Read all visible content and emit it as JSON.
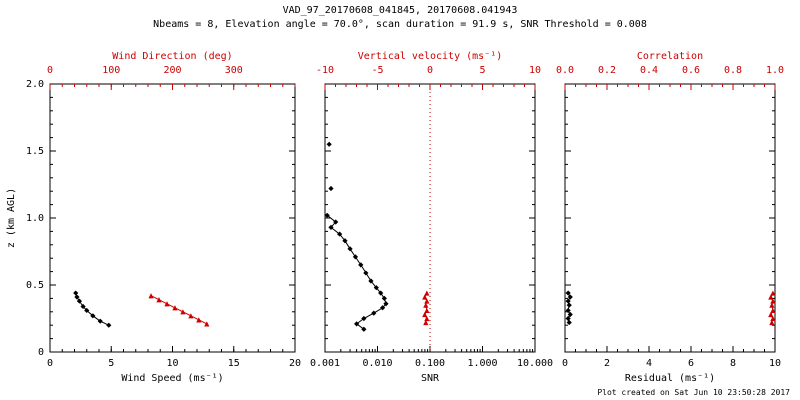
{
  "header": {
    "title": "VAD_97_20170608_041845, 20170608.041943",
    "subtitle": "Nbeams = 8, Elevation angle = 70.0°, scan duration = 91.9 s, SNR Threshold = 0.008"
  },
  "footer": {
    "created": "Plot created on Sat Jun 10 23:50:28 2017"
  },
  "colors": {
    "black": "#000000",
    "red": "#cc0000"
  },
  "chart_data": [
    {
      "name": "wind",
      "type": "line",
      "y": {
        "label": "z (km AGL)",
        "min": 0,
        "max": 2,
        "ticks": [
          0,
          0.5,
          1,
          1.5,
          2
        ],
        "tick_labels": [
          "0",
          "0.5",
          "1.0",
          "1.5",
          "2.0"
        ],
        "minor": 0.1,
        "show_labels": true
      },
      "x_bottom": {
        "label": "Wind Speed (ms⁻¹)",
        "min": 0,
        "max": 20,
        "scale": "linear",
        "ticks": [
          0,
          5,
          10,
          15,
          20
        ],
        "tick_labels": [
          "0",
          "5",
          "10",
          "15",
          "20"
        ],
        "minor": 1
      },
      "x_top": {
        "label": "Wind Direction (deg)",
        "min": 0,
        "max": 400,
        "scale": "linear",
        "ticks": [
          0,
          100,
          200,
          300
        ],
        "tick_labels": [
          "0",
          "100",
          "200",
          "300"
        ],
        "minor": 20
      },
      "series": [
        {
          "name": "wind-speed",
          "axis": "bottom",
          "color": "black",
          "line": true,
          "marker": "diamond",
          "points": [
            [
              2.1,
              0.44
            ],
            [
              2.2,
              0.41
            ],
            [
              2.4,
              0.38
            ],
            [
              2.7,
              0.34
            ],
            [
              3.0,
              0.31
            ],
            [
              3.5,
              0.27
            ],
            [
              4.1,
              0.23
            ],
            [
              4.8,
              0.2
            ]
          ]
        },
        {
          "name": "wind-direction",
          "axis": "top",
          "color": "red",
          "line": true,
          "marker": "triangle",
          "points": [
            [
              165,
              0.42
            ],
            [
              178,
              0.39
            ],
            [
              191,
              0.36
            ],
            [
              204,
              0.33
            ],
            [
              217,
              0.3
            ],
            [
              230,
              0.27
            ],
            [
              243,
              0.24
            ],
            [
              256,
              0.21
            ]
          ]
        }
      ]
    },
    {
      "name": "snr",
      "type": "line",
      "y": {
        "label": "",
        "min": 0,
        "max": 2,
        "ticks": [
          0,
          0.5,
          1,
          1.5,
          2
        ],
        "tick_labels": [
          "0",
          "0.5",
          "1.0",
          "1.5",
          "2.0"
        ],
        "minor": 0.1,
        "show_labels": false
      },
      "x_bottom": {
        "label": "SNR",
        "min": 0.001,
        "max": 10,
        "scale": "log",
        "ticks": [
          0.001,
          0.01,
          0.1,
          1,
          10
        ],
        "tick_labels": [
          "0.001",
          "0.010",
          "0.100",
          "1.000",
          "10.000"
        ]
      },
      "x_top": {
        "label": "Vertical velocity (ms⁻¹)",
        "min": -10,
        "max": 10,
        "scale": "linear",
        "ticks": [
          -10,
          -5,
          0,
          5,
          10
        ],
        "tick_labels": [
          "-10",
          "-5",
          "0",
          "5",
          "10"
        ],
        "minor": 1
      },
      "refline": {
        "axis": "top",
        "value": 0,
        "style": "dotted",
        "color": "red"
      },
      "series": [
        {
          "name": "snr-detached",
          "axis": "bottom",
          "color": "black",
          "line": false,
          "marker": "diamond",
          "points": [
            [
              0.0012,
              1.55
            ],
            [
              0.0013,
              1.22
            ]
          ]
        },
        {
          "name": "snr-profile",
          "axis": "bottom",
          "color": "black",
          "line": true,
          "marker": "diamond",
          "points": [
            [
              0.0011,
              1.02
            ],
            [
              0.0016,
              0.97
            ],
            [
              0.0013,
              0.93
            ],
            [
              0.0019,
              0.88
            ],
            [
              0.0024,
              0.83
            ],
            [
              0.003,
              0.77
            ],
            [
              0.0038,
              0.71
            ],
            [
              0.0048,
              0.65
            ],
            [
              0.006,
              0.59
            ],
            [
              0.0075,
              0.53
            ],
            [
              0.0095,
              0.48
            ],
            [
              0.0115,
              0.44
            ],
            [
              0.0135,
              0.4
            ],
            [
              0.0145,
              0.36
            ],
            [
              0.0125,
              0.33
            ],
            [
              0.0085,
              0.29
            ],
            [
              0.0055,
              0.25
            ],
            [
              0.004,
              0.21
            ],
            [
              0.0055,
              0.17
            ]
          ]
        },
        {
          "name": "vertical-velocity",
          "axis": "top",
          "color": "red",
          "line": true,
          "marker": "triangle",
          "points": [
            [
              -0.3,
              0.44
            ],
            [
              -0.5,
              0.41
            ],
            [
              -0.3,
              0.38
            ],
            [
              -0.4,
              0.35
            ],
            [
              -0.3,
              0.31
            ],
            [
              -0.5,
              0.28
            ],
            [
              -0.3,
              0.25
            ],
            [
              -0.4,
              0.22
            ]
          ]
        }
      ]
    },
    {
      "name": "residual",
      "type": "line",
      "y": {
        "label": "",
        "min": 0,
        "max": 2,
        "ticks": [
          0,
          0.5,
          1,
          1.5,
          2
        ],
        "tick_labels": [
          "0",
          "0.5",
          "1.0",
          "1.5",
          "2.0"
        ],
        "minor": 0.1,
        "show_labels": false
      },
      "x_bottom": {
        "label": "Residual (ms⁻¹)",
        "min": 0,
        "max": 10,
        "scale": "linear",
        "ticks": [
          0,
          2,
          4,
          6,
          8,
          10
        ],
        "tick_labels": [
          "0",
          "2",
          "4",
          "6",
          "8",
          "10"
        ],
        "minor": 0.5
      },
      "x_top": {
        "label": "Correlation",
        "min": 0,
        "max": 1,
        "scale": "linear",
        "ticks": [
          0,
          0.2,
          0.4,
          0.6,
          0.8,
          1
        ],
        "tick_labels": [
          "0.0",
          "0.2",
          "0.4",
          "0.6",
          "0.8",
          "1.0"
        ],
        "minor": 0.05
      },
      "series": [
        {
          "name": "residual",
          "axis": "bottom",
          "color": "black",
          "line": true,
          "marker": "diamond",
          "points": [
            [
              0.15,
              0.44
            ],
            [
              0.25,
              0.41
            ],
            [
              0.15,
              0.38
            ],
            [
              0.2,
              0.35
            ],
            [
              0.15,
              0.31
            ],
            [
              0.25,
              0.28
            ],
            [
              0.15,
              0.25
            ],
            [
              0.2,
              0.22
            ]
          ]
        },
        {
          "name": "correlation",
          "axis": "top",
          "color": "red",
          "line": true,
          "marker": "triangle",
          "points": [
            [
              0.99,
              0.44
            ],
            [
              0.98,
              0.41
            ],
            [
              0.99,
              0.38
            ],
            [
              0.985,
              0.35
            ],
            [
              0.99,
              0.31
            ],
            [
              0.98,
              0.28
            ],
            [
              0.99,
              0.25
            ],
            [
              0.985,
              0.22
            ]
          ]
        }
      ]
    }
  ]
}
